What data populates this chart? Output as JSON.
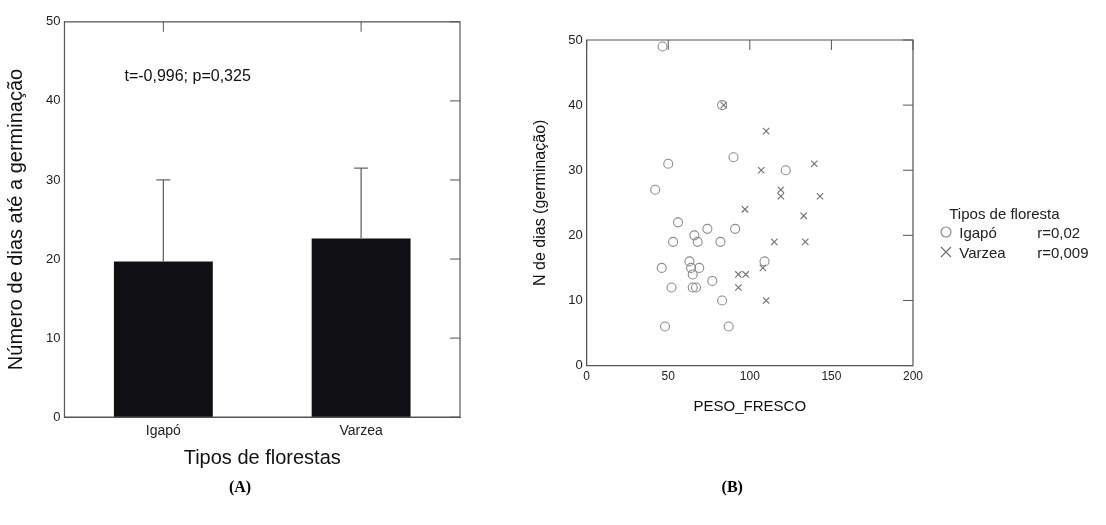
{
  "chart_data": [
    {
      "type": "bar",
      "xlabel": "Tipos de florestas",
      "ylabel": "Número de dias até a germinação",
      "categories": [
        "Igapó",
        "Varzea"
      ],
      "values": [
        19.7,
        22.6
      ],
      "color": "#0f0f14",
      "errors": [
        [
          19.7,
          30
        ],
        [
          22.6,
          31.5
        ]
      ],
      "ylim": [
        0,
        50
      ],
      "yticks": [
        0,
        10,
        20,
        30,
        40,
        50
      ],
      "grid": false,
      "legend": false,
      "annotations": [
        "t=-0,996; p=0,325",
        "(A)"
      ]
    },
    {
      "type": "scatter",
      "xlabel": "PESO_FRESCO",
      "ylabel": "N de dias (germinação)",
      "xlim": [
        0,
        200
      ],
      "xticks": [
        0,
        50,
        100,
        150,
        200
      ],
      "ylim": [
        0,
        50
      ],
      "yticks": [
        0,
        10,
        20,
        30,
        40,
        50
      ],
      "grid": false,
      "legend": "right",
      "legend_title": "Tipos de floresta",
      "series": [
        {
          "name": "Igapó",
          "color": "#8c8c8c",
          "marker": "circle",
          "x": [
            46.5,
            83,
            90,
            50,
            42,
            56,
            74,
            91,
            66,
            53,
            68,
            82,
            63,
            64,
            69,
            46,
            65,
            77,
            52,
            65,
            67,
            83,
            48,
            87,
            122,
            109
          ],
          "values": [
            49,
            40,
            32,
            31,
            27,
            22,
            21,
            21,
            20,
            19,
            19,
            19,
            16,
            15,
            15,
            15,
            14,
            13,
            12,
            12,
            12,
            10,
            6,
            6,
            30,
            16
          ]
        },
        {
          "name": "Varzea",
          "color": "#707070",
          "marker": "cross",
          "x": [
            84,
            110,
            107,
            139.5,
            119,
            119,
            143,
            97,
            133,
            115,
            134,
            97.5,
            108,
            110,
            93,
            93
          ],
          "values": [
            40,
            36,
            30,
            31,
            27,
            26,
            26,
            24,
            23,
            19,
            19,
            14,
            15,
            10,
            14,
            12
          ]
        }
      ],
      "annotations": [
        "r=0,02",
        "r=0,009",
        "(B)"
      ]
    }
  ]
}
